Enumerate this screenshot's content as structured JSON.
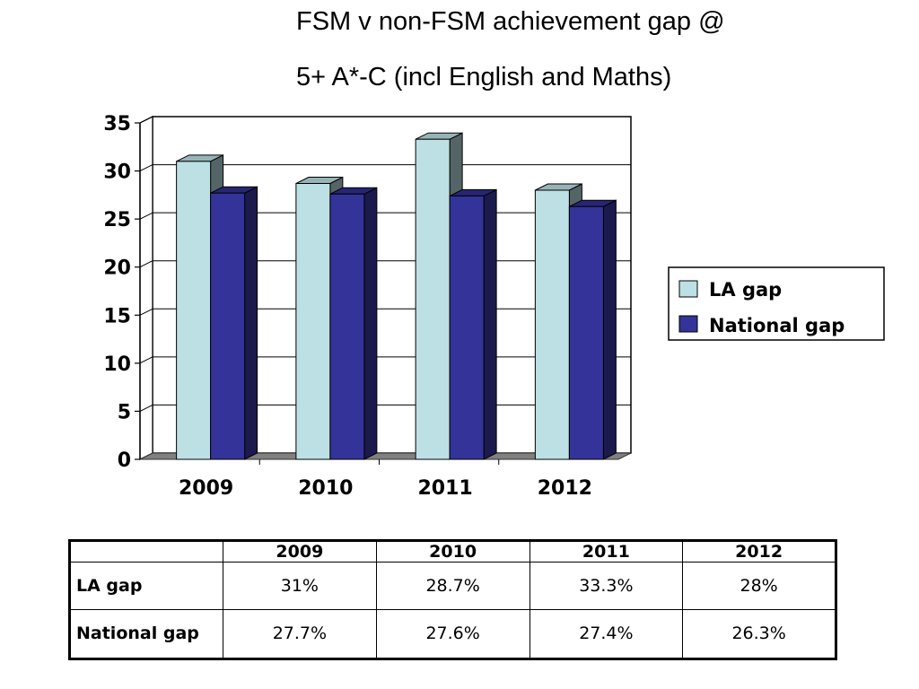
{
  "title_line1": "FSM v non-FSM achievement gap @",
  "title_line2": "5+ A*-C (incl English and Maths)",
  "chart_data": {
    "type": "bar",
    "categories": [
      "2009",
      "2010",
      "2011",
      "2012"
    ],
    "series": [
      {
        "name": "LA gap",
        "values": [
          31,
          28.7,
          33.3,
          28
        ],
        "color": "#bde0e4"
      },
      {
        "name": "National gap",
        "values": [
          27.7,
          27.6,
          27.4,
          26.3
        ],
        "color": "#333399"
      }
    ],
    "ylim": [
      0,
      35
    ],
    "yticks": [
      "0",
      "5",
      "10",
      "15",
      "20",
      "25",
      "30",
      "35"
    ],
    "grid": true,
    "legend": "right",
    "style": "3d-clustered-bar"
  },
  "table": {
    "headers": [
      "",
      "2009",
      "2010",
      "2011",
      "2012"
    ],
    "rows": [
      {
        "label": "LA gap",
        "cells": [
          "31%",
          "28.7%",
          "33.3%",
          "28%"
        ]
      },
      {
        "label": "National gap",
        "cells": [
          "27.7%",
          "27.6%",
          "27.4%",
          "26.3%"
        ]
      }
    ]
  }
}
